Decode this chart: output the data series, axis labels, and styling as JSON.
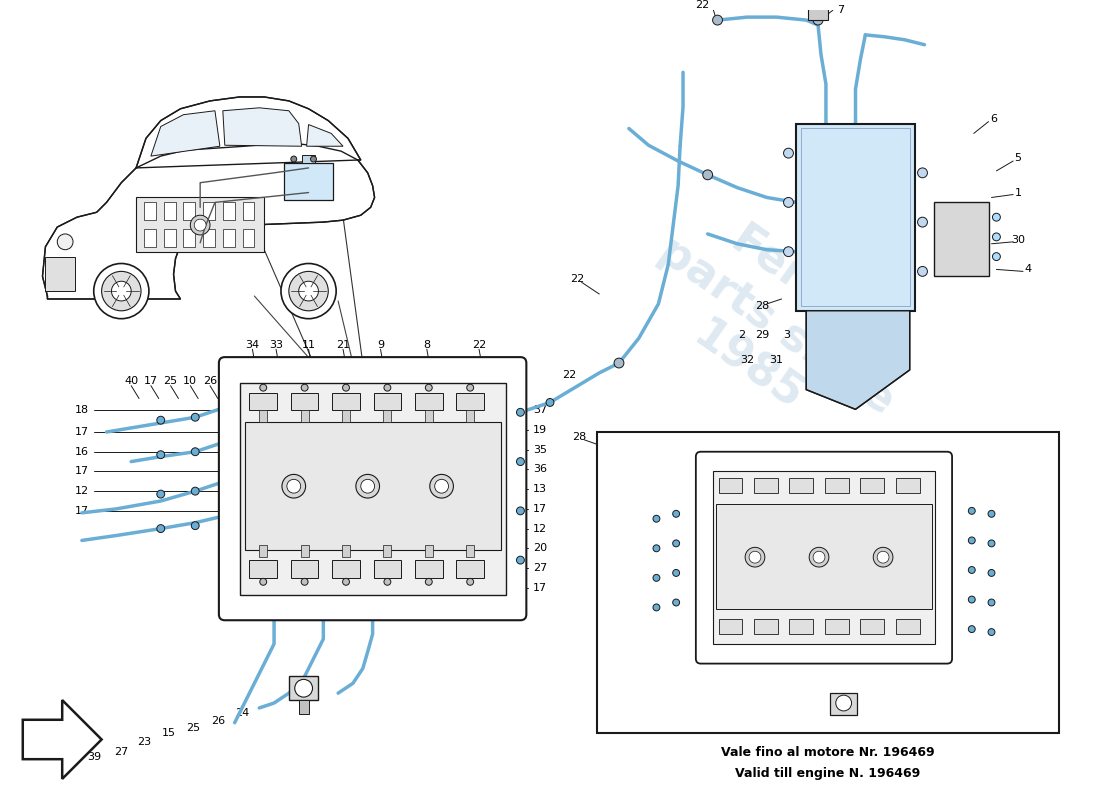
{
  "bg_color": "#ffffff",
  "hose_color": "#6aaed6",
  "outline_color": "#1a1a1a",
  "text_color": "#000000",
  "lfs": 7.5,
  "watermark_lines": [
    "Ferrari",
    "parts",
    "since",
    "1985"
  ],
  "note_line1": "Vale fino al motore Nr. 196469",
  "note_line2": "Valid till engine N. 196469"
}
